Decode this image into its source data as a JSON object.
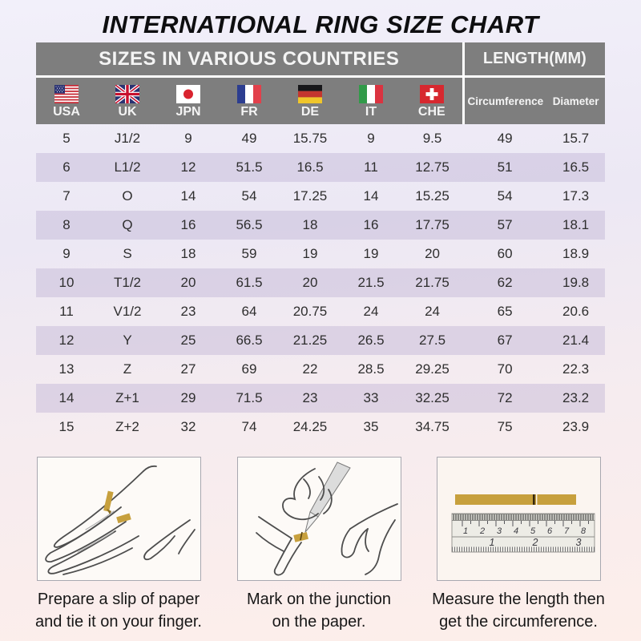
{
  "title": "INTERNATIONAL RING SIZE CHART",
  "chart_data": {
    "type": "table",
    "title": "INTERNATIONAL RING SIZE CHART",
    "columns": [
      "USA",
      "UK",
      "JPN",
      "FR",
      "DE",
      "IT",
      "CHE",
      "Circumference",
      "Diameter"
    ],
    "rows": [
      [
        "5",
        "J1/2",
        "9",
        "49",
        "15.75",
        "9",
        "9.5",
        "49",
        "15.7"
      ],
      [
        "6",
        "L1/2",
        "12",
        "51.5",
        "16.5",
        "11",
        "12.75",
        "51",
        "16.5"
      ],
      [
        "7",
        "O",
        "14",
        "54",
        "17.25",
        "14",
        "15.25",
        "54",
        "17.3"
      ],
      [
        "8",
        "Q",
        "16",
        "56.5",
        "18",
        "16",
        "17.75",
        "57",
        "18.1"
      ],
      [
        "9",
        "S",
        "18",
        "59",
        "19",
        "19",
        "20",
        "60",
        "18.9"
      ],
      [
        "10",
        "T1/2",
        "20",
        "61.5",
        "20",
        "21.5",
        "21.75",
        "62",
        "19.8"
      ],
      [
        "11",
        "V1/2",
        "23",
        "64",
        "20.75",
        "24",
        "24",
        "65",
        "20.6"
      ],
      [
        "12",
        "Y",
        "25",
        "66.5",
        "21.25",
        "26.5",
        "27.5",
        "67",
        "21.4"
      ],
      [
        "13",
        "Z",
        "27",
        "69",
        "22",
        "28.5",
        "29.25",
        "70",
        "22.3"
      ],
      [
        "14",
        "Z+1",
        "29",
        "71.5",
        "23",
        "33",
        "32.25",
        "72",
        "23.2"
      ],
      [
        "15",
        "Z+2",
        "32",
        "74",
        "24.25",
        "35",
        "34.75",
        "75",
        "23.9"
      ]
    ]
  },
  "table": {
    "section_left": "SIZES IN VARIOUS COUNTRIES",
    "section_right": "LENGTH(MM)",
    "countries": [
      {
        "label": "USA",
        "flag": "usa-flag"
      },
      {
        "label": "UK",
        "flag": "uk-flag"
      },
      {
        "label": "JPN",
        "flag": "japan-flag"
      },
      {
        "label": "FR",
        "flag": "france-flag"
      },
      {
        "label": "DE",
        "flag": "germany-flag"
      },
      {
        "label": "IT",
        "flag": "italy-flag"
      },
      {
        "label": "CHE",
        "flag": "switzerland-flag"
      }
    ],
    "length_columns": {
      "circumference": "Circumference",
      "diameter": "Diameter"
    }
  },
  "instructions": {
    "step1": {
      "line1": "Prepare a slip of paper",
      "line2": "and tie it on your finger.",
      "illustration": "hand-with-paper-slip"
    },
    "step2": {
      "line1": "Mark on the junction",
      "line2": "on the paper.",
      "illustration": "pen-marking-junction"
    },
    "step3": {
      "line1": "Measure the length then",
      "line2": "get the circumference.",
      "illustration": "ruler-measuring-strip"
    }
  },
  "ruler": {
    "cm": [
      "1",
      "2",
      "3",
      "4",
      "5",
      "6",
      "7",
      "8"
    ],
    "inch": [
      "1",
      "2",
      "3"
    ]
  },
  "colors": {
    "header_gray": "#7e7e7e",
    "row_shade": "#ded7e9",
    "paper_gold": "#c7a03d",
    "bg_top": "#f2f0fa",
    "bg_bottom": "#fdeeea",
    "title_text": "#0e0e10"
  }
}
